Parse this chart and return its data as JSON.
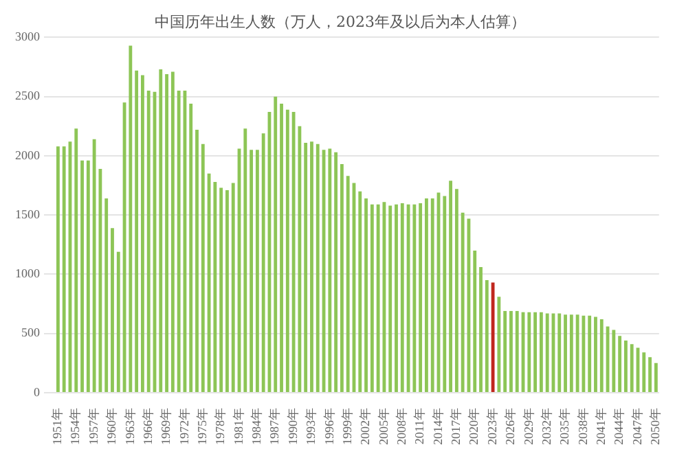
{
  "chart_data": {
    "type": "bar",
    "title": "中国历年出生人数（万人，2023年及以后为本人估算）",
    "categories": [
      "1951年",
      null,
      null,
      "1954年",
      null,
      null,
      "1957年",
      null,
      null,
      "1960年",
      null,
      null,
      "1963年",
      null,
      null,
      "1966年",
      null,
      null,
      "1969年",
      null,
      null,
      "1972年",
      null,
      null,
      "1975年",
      null,
      null,
      "1978年",
      null,
      null,
      "1981年",
      null,
      null,
      "1984年",
      null,
      null,
      "1987年",
      null,
      null,
      "1990年",
      null,
      null,
      "1993年",
      null,
      null,
      "1996年",
      null,
      null,
      "1999年",
      null,
      null,
      "2002年",
      null,
      null,
      "2005年",
      null,
      null,
      "2008年",
      null,
      null,
      "2011年",
      null,
      null,
      "2014年",
      null,
      null,
      "2017年",
      null,
      null,
      "2020年",
      null,
      null,
      "2023年",
      null,
      null,
      "2026年",
      null,
      null,
      "2029年",
      null,
      null,
      "2032年",
      null,
      null,
      "2035年",
      null,
      null,
      "2038年",
      null,
      null,
      "2041年",
      null,
      null,
      "2044年",
      null,
      null,
      "2047年",
      null,
      null,
      "2050年"
    ],
    "values": [
      2080,
      2080,
      2120,
      2230,
      1960,
      1960,
      2140,
      1890,
      1640,
      1390,
      1190,
      2450,
      2930,
      2720,
      2680,
      2550,
      2540,
      2730,
      2690,
      2710,
      2550,
      2550,
      2440,
      2220,
      2100,
      1850,
      1780,
      1730,
      1710,
      1770,
      2060,
      2230,
      2050,
      2050,
      2190,
      2370,
      2500,
      2440,
      2390,
      2370,
      2250,
      2110,
      2120,
      2100,
      2050,
      2060,
      2030,
      1930,
      1830,
      1770,
      1700,
      1640,
      1590,
      1590,
      1610,
      1580,
      1590,
      1600,
      1590,
      1590,
      1600,
      1640,
      1640,
      1690,
      1660,
      1790,
      1720,
      1520,
      1470,
      1200,
      1060,
      950,
      930,
      810,
      690,
      690,
      690,
      680,
      680,
      680,
      680,
      670,
      670,
      670,
      660,
      660,
      660,
      650,
      650,
      640,
      620,
      560,
      530,
      480,
      440,
      410,
      380,
      340,
      300,
      250
    ],
    "colors": [
      "#8dc556",
      "#8dc556",
      "#8dc556",
      "#8dc556",
      "#8dc556",
      "#8dc556",
      "#8dc556",
      "#8dc556",
      "#8dc556",
      "#8dc556",
      "#8dc556",
      "#8dc556",
      "#8dc556",
      "#8dc556",
      "#8dc556",
      "#8dc556",
      "#8dc556",
      "#8dc556",
      "#8dc556",
      "#8dc556",
      "#8dc556",
      "#8dc556",
      "#8dc556",
      "#8dc556",
      "#8dc556",
      "#8dc556",
      "#8dc556",
      "#8dc556",
      "#8dc556",
      "#8dc556",
      "#8dc556",
      "#8dc556",
      "#8dc556",
      "#8dc556",
      "#8dc556",
      "#8dc556",
      "#8dc556",
      "#8dc556",
      "#8dc556",
      "#8dc556",
      "#8dc556",
      "#8dc556",
      "#8dc556",
      "#8dc556",
      "#8dc556",
      "#8dc556",
      "#8dc556",
      "#8dc556",
      "#8dc556",
      "#8dc556",
      "#8dc556",
      "#8dc556",
      "#8dc556",
      "#8dc556",
      "#8dc556",
      "#8dc556",
      "#8dc556",
      "#8dc556",
      "#8dc556",
      "#8dc556",
      "#8dc556",
      "#8dc556",
      "#8dc556",
      "#8dc556",
      "#8dc556",
      "#8dc556",
      "#8dc556",
      "#8dc556",
      "#8dc556",
      "#8dc556",
      "#8dc556",
      "#8dc556",
      "#c0271e",
      "#8dc556",
      "#8dc556",
      "#8dc556",
      "#8dc556",
      "#8dc556",
      "#8dc556",
      "#8dc556",
      "#8dc556",
      "#8dc556",
      "#8dc556",
      "#8dc556",
      "#8dc556",
      "#8dc556",
      "#8dc556",
      "#8dc556",
      "#8dc556",
      "#8dc556",
      "#8dc556",
      "#8dc556",
      "#8dc556",
      "#8dc556",
      "#8dc556",
      "#8dc556",
      "#8dc556",
      "#8dc556",
      "#8dc556",
      "#8dc556"
    ],
    "ylim": [
      0,
      3000
    ],
    "yticks": [
      0,
      500,
      1000,
      1500,
      2000,
      2500,
      3000
    ],
    "grid": "y",
    "legend": false
  }
}
